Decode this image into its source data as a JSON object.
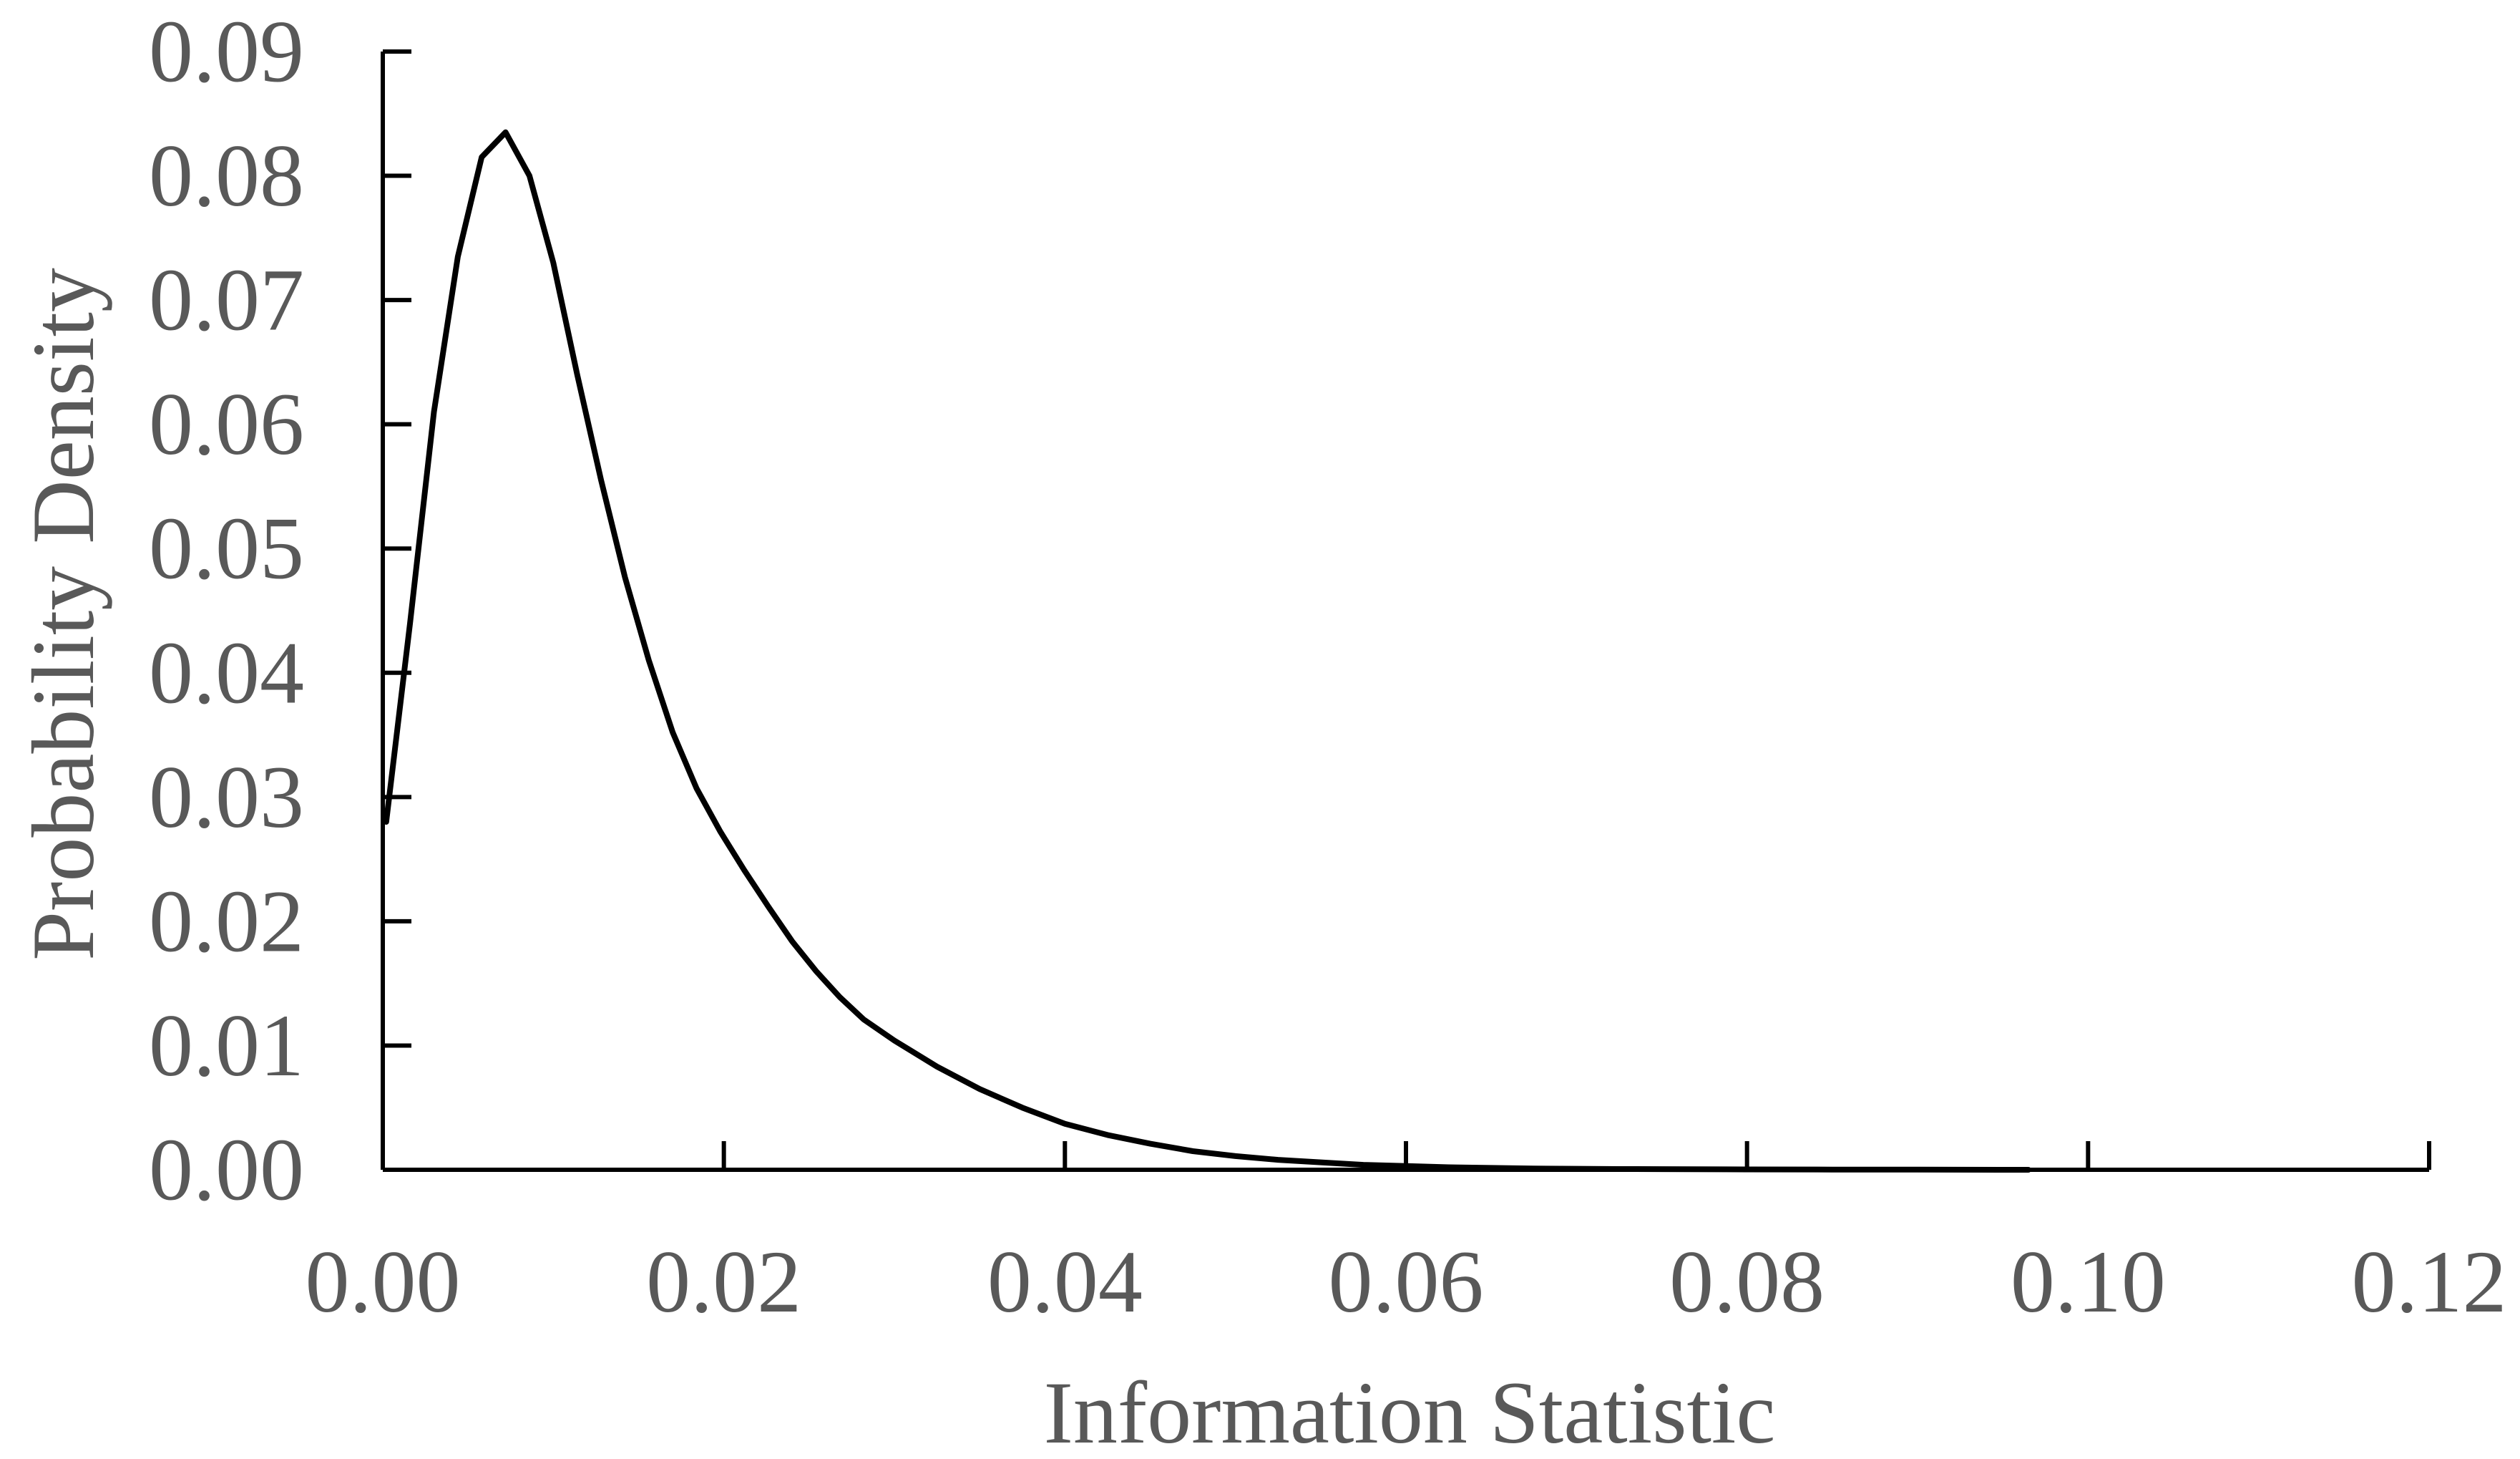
{
  "chart_data": {
    "type": "line",
    "title": "",
    "xlabel": "Information Statistic",
    "ylabel": "Probability Density",
    "xlim": [
      0,
      0.12
    ],
    "ylim": [
      0,
      0.09
    ],
    "x_ticks": [
      "0.00",
      "0.02",
      "0.04",
      "0.06",
      "0.08",
      "0.10",
      "0.12"
    ],
    "y_ticks": [
      "0.00",
      "0.01",
      "0.02",
      "0.03",
      "0.04",
      "0.05",
      "0.06",
      "0.07",
      "0.08",
      "0.09"
    ],
    "grid": false,
    "legend": "none",
    "line_color": "#000000",
    "label_color": "#595959",
    "series": [
      {
        "x": [
          0.0002,
          0.0016,
          0.003,
          0.0044,
          0.0058,
          0.0072,
          0.0086,
          0.01,
          0.0114,
          0.0128,
          0.0142,
          0.0156,
          0.017,
          0.0184,
          0.0198,
          0.0212,
          0.0226,
          0.024,
          0.0254,
          0.0268,
          0.0282,
          0.03,
          0.0325,
          0.035,
          0.0375,
          0.04,
          0.0425,
          0.045,
          0.0475,
          0.05,
          0.0525,
          0.055,
          0.0575,
          0.06,
          0.0625,
          0.065,
          0.0675,
          0.07,
          0.0725,
          0.075,
          0.08,
          0.085,
          0.09,
          0.0965
        ],
        "y": [
          0.028,
          0.044,
          0.061,
          0.0735,
          0.0815,
          0.0835,
          0.08,
          0.073,
          0.064,
          0.0555,
          0.0477,
          0.041,
          0.0352,
          0.0307,
          0.0272,
          0.0241,
          0.0212,
          0.0184,
          0.016,
          0.0139,
          0.0121,
          0.0104,
          0.0083,
          0.0065,
          0.005,
          0.0037,
          0.0028,
          0.0021,
          0.0015,
          0.0011,
          0.0008,
          0.0006,
          0.0004,
          0.0003,
          0.0002,
          0.00015,
          0.0001,
          8e-05,
          6e-05,
          5e-05,
          3e-05,
          2e-05,
          1e-05,
          0.0
        ]
      }
    ]
  }
}
